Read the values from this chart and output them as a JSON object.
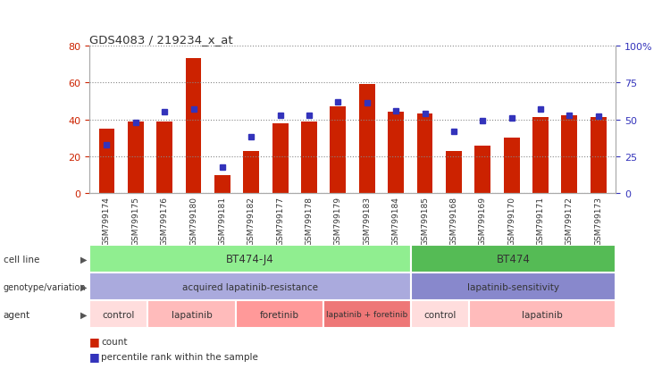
{
  "title": "GDS4083 / 219234_x_at",
  "samples": [
    "GSM799174",
    "GSM799175",
    "GSM799176",
    "GSM799180",
    "GSM799181",
    "GSM799182",
    "GSM799177",
    "GSM799178",
    "GSM799179",
    "GSM799183",
    "GSM799184",
    "GSM799185",
    "GSM799168",
    "GSM799169",
    "GSM799170",
    "GSM799171",
    "GSM799172",
    "GSM799173"
  ],
  "counts": [
    35,
    39,
    39,
    73,
    10,
    23,
    38,
    39,
    47,
    59,
    44,
    43,
    23,
    26,
    30,
    41,
    42,
    41
  ],
  "percentile_ranks": [
    33,
    48,
    55,
    57,
    18,
    38,
    53,
    53,
    62,
    61,
    56,
    54,
    42,
    49,
    51,
    57,
    53,
    52
  ],
  "bar_color": "#CC2200",
  "marker_color": "#3333BB",
  "ylim_left": [
    0,
    80
  ],
  "ylim_right": [
    0,
    100
  ],
  "yticks_left": [
    0,
    20,
    40,
    60,
    80
  ],
  "yticks_right": [
    0,
    25,
    50,
    75,
    100
  ],
  "yticklabels_right": [
    "0",
    "25",
    "50",
    "75",
    "100%"
  ],
  "cell_line_groups": [
    {
      "label": "BT474-J4",
      "start": 0,
      "end": 11,
      "color": "#90EE90"
    },
    {
      "label": "BT474",
      "start": 11,
      "end": 18,
      "color": "#55BB55"
    }
  ],
  "genotype_groups": [
    {
      "label": "acquired lapatinib-resistance",
      "start": 0,
      "end": 11,
      "color": "#AAAADD"
    },
    {
      "label": "lapatinib-sensitivity",
      "start": 11,
      "end": 18,
      "color": "#8888CC"
    }
  ],
  "agent_labels": [
    "control",
    "lapatinib",
    "foretinib",
    "lapatinib + foretinib",
    "control",
    "lapatinib"
  ],
  "agent_ranges": [
    [
      0,
      2
    ],
    [
      2,
      5
    ],
    [
      5,
      8
    ],
    [
      8,
      11
    ],
    [
      11,
      13
    ],
    [
      13,
      18
    ]
  ],
  "agent_colors": [
    "#FFDDDD",
    "#FFBBBB",
    "#FF9999",
    "#EE7777",
    "#FFDDDD",
    "#FFBBBB"
  ],
  "tick_color_left": "#CC2200",
  "tick_color_right": "#3333BB",
  "bg_color": "#FFFFFF",
  "grid_color": "#888888"
}
